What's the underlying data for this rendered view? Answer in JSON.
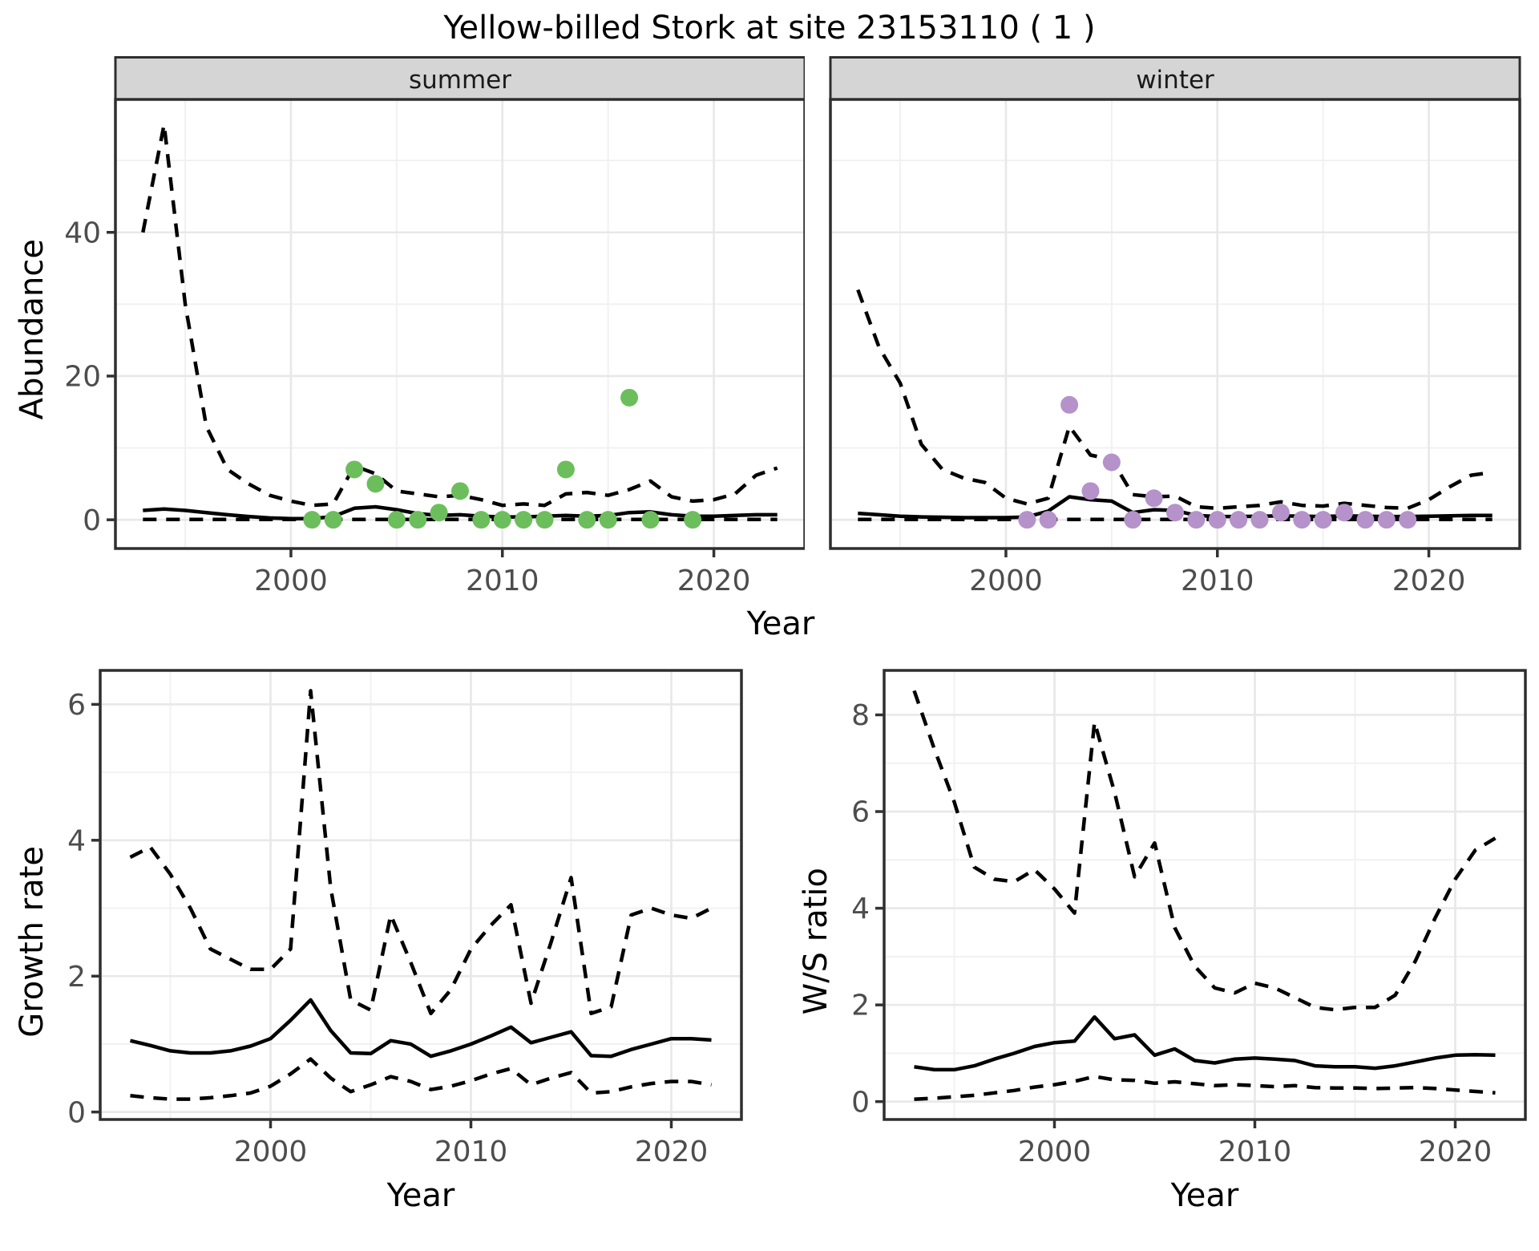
{
  "title": "Yellow-billed Stork at site 23153110 ( 1 )",
  "labels": {
    "year": "Year",
    "abundance": "Abundance",
    "growth_rate": "Growth rate",
    "ws_ratio": "W/S ratio"
  },
  "colors": {
    "summer_point": "#6CBE5C",
    "winter_point": "#B592C9",
    "line": "#000000",
    "grid_major": "#E8E8E8",
    "grid_minor": "#F1F1F1",
    "strip_bg": "#D5D5D5",
    "panel_border": "#2E2E2E",
    "tick_mark": "#333333",
    "tick_label": "#4D4D4D",
    "panel_bg": "#FFFFFF"
  },
  "chart_data": {
    "type": "line",
    "title": "Yellow-billed Stork at site 23153110 ( 1 )",
    "legend": "none",
    "grid": "on",
    "panels": [
      {
        "id": "abundance-summer",
        "facet": "summer",
        "ylabel": "Abundance",
        "xlabel": "Year",
        "xlim": [
          1991.7,
          2024.3
        ],
        "ylim": [
          -4,
          58.5
        ],
        "xticks": [
          2000,
          2010,
          2020
        ],
        "xminor": [
          1995,
          2005,
          2015
        ],
        "yticks": [
          0,
          20,
          40
        ],
        "yminor": [
          10,
          30,
          50
        ],
        "show_ytick_labels": true,
        "years": [
          1993,
          1994,
          1995,
          1996,
          1997,
          1998,
          1999,
          2000,
          2001,
          2002,
          2003,
          2004,
          2005,
          2006,
          2007,
          2008,
          2009,
          2010,
          2011,
          2012,
          2013,
          2014,
          2015,
          2016,
          2017,
          2018,
          2019,
          2020,
          2021,
          2022,
          2023
        ],
        "median": [
          1.3,
          1.5,
          1.3,
          1.0,
          0.7,
          0.45,
          0.25,
          0.15,
          0.15,
          0.45,
          1.6,
          1.8,
          1.4,
          0.85,
          0.6,
          0.7,
          0.5,
          0.4,
          0.4,
          0.5,
          0.6,
          0.5,
          0.6,
          1.0,
          1.1,
          0.7,
          0.5,
          0.5,
          0.6,
          0.7,
          0.7
        ],
        "upper_ci": [
          40,
          55,
          30,
          13,
          7,
          5,
          3.4,
          2.6,
          2.0,
          2.2,
          7.5,
          6.4,
          4.0,
          3.6,
          3.2,
          3.4,
          2.8,
          2.0,
          2.2,
          2.0,
          3.6,
          3.8,
          3.4,
          4.2,
          5.4,
          3.2,
          2.6,
          2.8,
          3.6,
          6.2,
          7.2
        ],
        "lower_ci": [
          0.05,
          0.05,
          0.05,
          0.05,
          0.05,
          0.05,
          0.05,
          0.05,
          0.05,
          0.05,
          0.05,
          0.05,
          0.05,
          0.05,
          0.05,
          0.05,
          0.05,
          0.05,
          0.05,
          0.05,
          0.05,
          0.05,
          0.05,
          0.05,
          0.05,
          0.05,
          0.05,
          0.05,
          0.05,
          0.05,
          0.05
        ],
        "points": {
          "color_key": "summer_point",
          "years": [
            2001,
            2002,
            2003,
            2004,
            2005,
            2006,
            2007,
            2008,
            2009,
            2010,
            2011,
            2012,
            2013,
            2014,
            2015,
            2016,
            2017,
            2019
          ],
          "values": [
            0,
            0,
            7,
            5,
            0,
            0,
            1,
            4,
            0,
            0,
            0,
            0,
            7,
            0,
            0,
            17,
            0,
            0
          ]
        }
      },
      {
        "id": "abundance-winter",
        "facet": "winter",
        "ylabel": "Abundance",
        "xlabel": "Year",
        "xlim": [
          1991.7,
          2024.3
        ],
        "ylim": [
          -4,
          58.5
        ],
        "xticks": [
          2000,
          2010,
          2020
        ],
        "xminor": [
          1995,
          2005,
          2015
        ],
        "yticks": [
          0,
          20,
          40
        ],
        "yminor": [
          10,
          30,
          50
        ],
        "show_ytick_labels": false,
        "years": [
          1993,
          1994,
          1995,
          1996,
          1997,
          1998,
          1999,
          2000,
          2001,
          2002,
          2003,
          2004,
          2005,
          2006,
          2007,
          2008,
          2009,
          2010,
          2011,
          2012,
          2013,
          2014,
          2015,
          2016,
          2017,
          2018,
          2019,
          2020,
          2021,
          2022,
          2023
        ],
        "median": [
          0.9,
          0.7,
          0.5,
          0.4,
          0.35,
          0.3,
          0.3,
          0.3,
          0.4,
          1.2,
          3.2,
          2.8,
          2.6,
          1.0,
          1.4,
          1.3,
          0.6,
          0.45,
          0.45,
          0.5,
          0.55,
          0.5,
          0.45,
          0.55,
          0.5,
          0.45,
          0.45,
          0.5,
          0.55,
          0.6,
          0.6
        ],
        "upper_ci": [
          32,
          24,
          19,
          10.5,
          7,
          5.8,
          5.2,
          3.0,
          2.2,
          3.0,
          13,
          9,
          8.4,
          3.5,
          3.2,
          3.3,
          1.8,
          1.6,
          1.8,
          2.0,
          2.5,
          2.0,
          1.9,
          2.3,
          2.0,
          1.7,
          1.6,
          2.8,
          4.6,
          6.2,
          6.6
        ],
        "lower_ci": [
          0.05,
          0.05,
          0.05,
          0.05,
          0.05,
          0.05,
          0.05,
          0.05,
          0.05,
          0.05,
          0.05,
          0.05,
          0.05,
          0.05,
          0.05,
          0.05,
          0.05,
          0.05,
          0.05,
          0.05,
          0.05,
          0.05,
          0.05,
          0.05,
          0.05,
          0.05,
          0.05,
          0.05,
          0.05,
          0.05,
          0.05
        ],
        "points": {
          "color_key": "winter_point",
          "years": [
            2001,
            2002,
            2003,
            2004,
            2005,
            2006,
            2007,
            2008,
            2009,
            2010,
            2011,
            2012,
            2013,
            2014,
            2015,
            2016,
            2017,
            2018,
            2019
          ],
          "values": [
            0,
            0,
            16,
            4,
            8,
            0,
            3,
            1,
            0,
            0,
            0,
            0,
            1,
            0,
            0,
            1,
            0,
            0,
            0
          ]
        }
      },
      {
        "id": "growth-rate",
        "facet": null,
        "ylabel": "Growth rate",
        "xlabel": "Year",
        "xlim": [
          1991.5,
          2023.5
        ],
        "ylim": [
          -0.11,
          6.5
        ],
        "xticks": [
          2000,
          2010,
          2020
        ],
        "xminor": [
          1995,
          2005,
          2015
        ],
        "yticks": [
          0,
          2,
          4,
          6
        ],
        "yminor": [
          1,
          3,
          5
        ],
        "show_ytick_labels": true,
        "years": [
          1993,
          1994,
          1995,
          1996,
          1997,
          1998,
          1999,
          2000,
          2001,
          2002,
          2003,
          2004,
          2005,
          2006,
          2007,
          2008,
          2009,
          2010,
          2011,
          2012,
          2013,
          2014,
          2015,
          2016,
          2017,
          2018,
          2019,
          2020,
          2021,
          2022
        ],
        "median": [
          1.05,
          0.98,
          0.9,
          0.87,
          0.87,
          0.9,
          0.97,
          1.08,
          1.35,
          1.65,
          1.2,
          0.87,
          0.86,
          1.05,
          1.0,
          0.82,
          0.9,
          1.0,
          1.12,
          1.25,
          1.02,
          1.1,
          1.18,
          0.83,
          0.82,
          0.92,
          1.0,
          1.08,
          1.08,
          1.06
        ],
        "upper_ci": [
          3.75,
          3.9,
          3.5,
          3.0,
          2.4,
          2.25,
          2.1,
          2.1,
          2.4,
          6.2,
          3.3,
          1.65,
          1.5,
          2.9,
          2.2,
          1.45,
          1.8,
          2.4,
          2.75,
          3.05,
          1.6,
          2.5,
          3.45,
          1.45,
          1.55,
          2.9,
          3.0,
          2.9,
          2.85,
          3.0
        ],
        "lower_ci": [
          0.24,
          0.21,
          0.19,
          0.19,
          0.21,
          0.24,
          0.28,
          0.38,
          0.56,
          0.78,
          0.5,
          0.3,
          0.4,
          0.52,
          0.45,
          0.33,
          0.38,
          0.46,
          0.56,
          0.64,
          0.4,
          0.5,
          0.58,
          0.28,
          0.3,
          0.37,
          0.42,
          0.45,
          0.45,
          0.4
        ],
        "points": null
      },
      {
        "id": "ws-ratio",
        "facet": null,
        "ylabel": "W/S ratio",
        "xlabel": "Year",
        "xlim": [
          1991.5,
          2023.5
        ],
        "ylim": [
          -0.37,
          8.92
        ],
        "xticks": [
          2000,
          2010,
          2020
        ],
        "xminor": [
          1995,
          2005,
          2015
        ],
        "yticks": [
          0,
          2,
          4,
          6,
          8
        ],
        "yminor": [
          1,
          3,
          5,
          7
        ],
        "show_ytick_labels": true,
        "years": [
          1993,
          1994,
          1995,
          1996,
          1997,
          1998,
          1999,
          2000,
          2001,
          2002,
          2003,
          2004,
          2005,
          2006,
          2007,
          2008,
          2009,
          2010,
          2011,
          2012,
          2013,
          2014,
          2015,
          2016,
          2017,
          2018,
          2019,
          2020,
          2021,
          2022
        ],
        "median": [
          0.72,
          0.66,
          0.66,
          0.74,
          0.88,
          1.0,
          1.14,
          1.22,
          1.25,
          1.75,
          1.3,
          1.38,
          0.96,
          1.09,
          0.85,
          0.8,
          0.88,
          0.9,
          0.88,
          0.85,
          0.74,
          0.72,
          0.72,
          0.69,
          0.74,
          0.82,
          0.9,
          0.96,
          0.97,
          0.96
        ],
        "upper_ci": [
          8.5,
          7.3,
          6.2,
          4.85,
          4.6,
          4.55,
          4.8,
          4.4,
          3.9,
          7.85,
          6.4,
          4.65,
          5.35,
          3.6,
          2.8,
          2.35,
          2.25,
          2.45,
          2.35,
          2.15,
          1.95,
          1.9,
          1.95,
          1.95,
          2.2,
          2.9,
          3.8,
          4.6,
          5.2,
          5.45
        ],
        "lower_ci": [
          0.05,
          0.07,
          0.1,
          0.13,
          0.18,
          0.23,
          0.3,
          0.35,
          0.42,
          0.52,
          0.45,
          0.44,
          0.38,
          0.41,
          0.37,
          0.33,
          0.35,
          0.33,
          0.31,
          0.33,
          0.29,
          0.28,
          0.28,
          0.27,
          0.28,
          0.29,
          0.27,
          0.24,
          0.21,
          0.18
        ],
        "points": null
      }
    ]
  }
}
